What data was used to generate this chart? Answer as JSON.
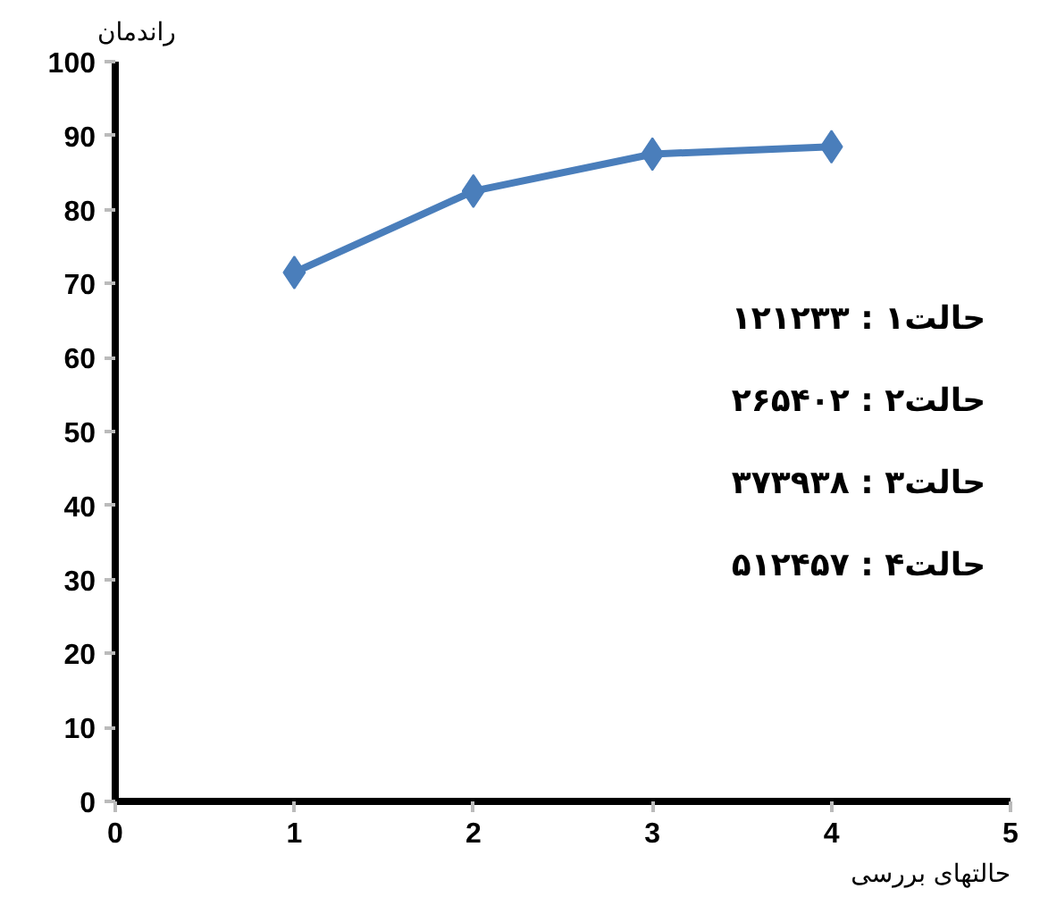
{
  "chart_data": {
    "type": "line",
    "xlabel": "حالتهای بررسی",
    "ylabel": "راندمان",
    "x": [
      1,
      2,
      3,
      4
    ],
    "series": [
      {
        "color": "#4a7ebb",
        "values": [
          71.5,
          82.5,
          87.5,
          88.5
        ]
      }
    ],
    "xlim": [
      0,
      5
    ],
    "xticks": [
      0,
      1,
      2,
      3,
      4,
      5
    ],
    "ylim": [
      0,
      100
    ],
    "yticks": [
      0,
      10,
      20,
      30,
      40,
      50,
      60,
      70,
      80,
      90,
      100
    ],
    "annotations": [
      "حالت۱ : ۱۲۱۲۳۳",
      "حالت۲ : ۲۶۵۴۰۲",
      "حالت۳ : ۳۷۳۹۳۸",
      "حالت۴ : ۵۱۲۴۵۷"
    ],
    "marker": "diamond",
    "line_style": "solid",
    "grid": false
  }
}
